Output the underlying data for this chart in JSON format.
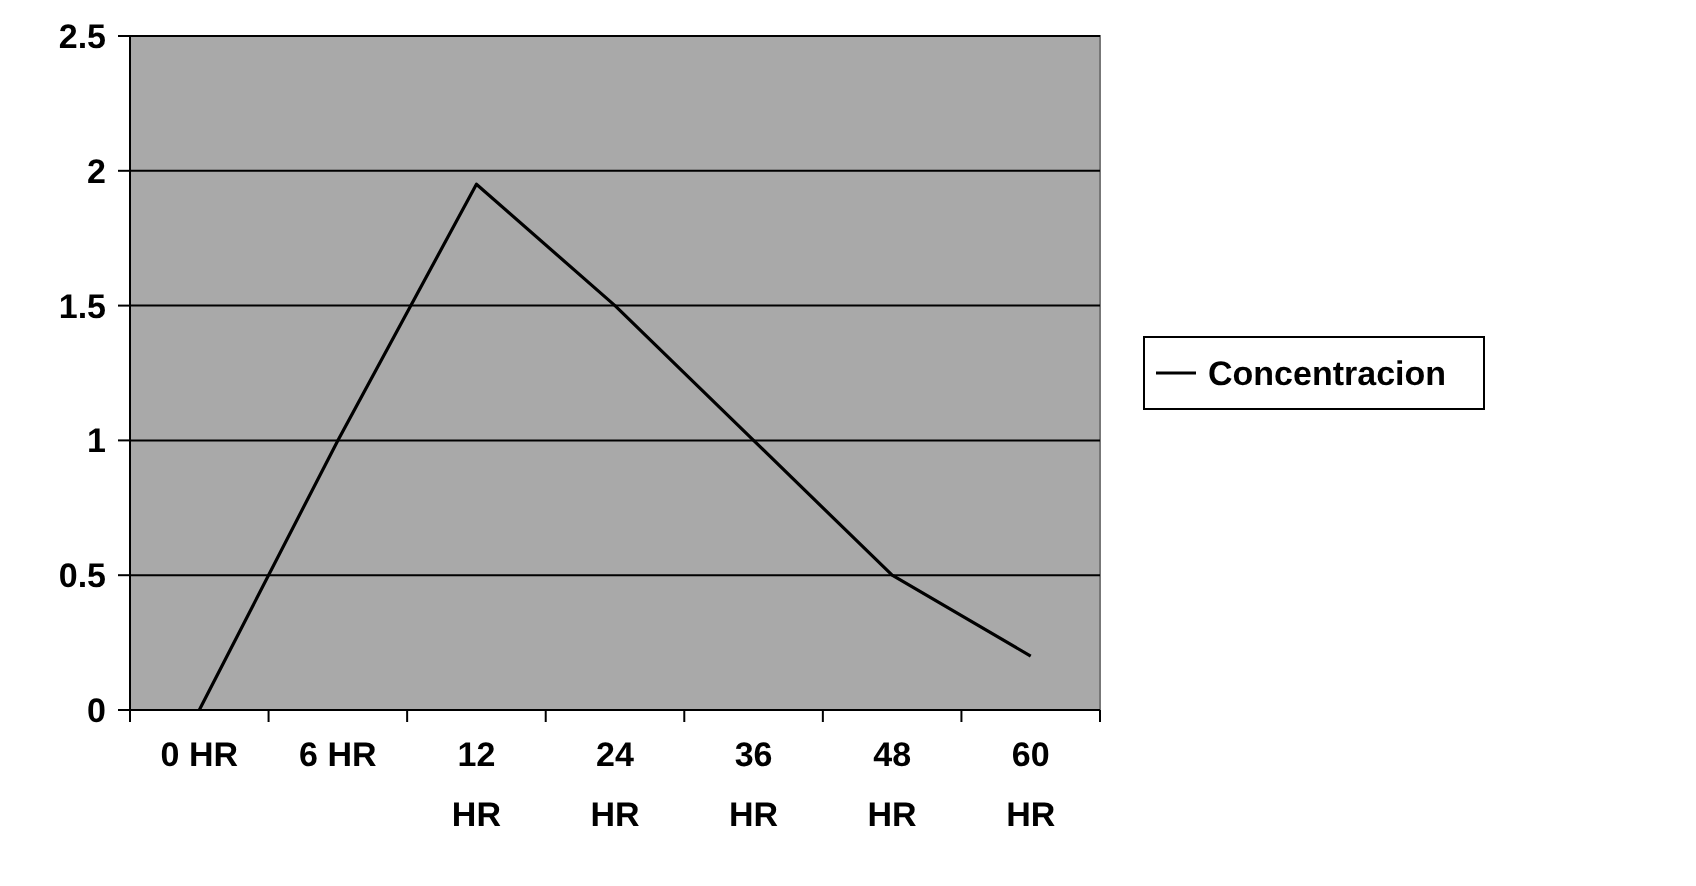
{
  "chart_data": {
    "type": "line",
    "categories": [
      "0 HR",
      "6 HR",
      "12 HR",
      "24 HR",
      "36 HR",
      "48 HR",
      "60 HR"
    ],
    "series": [
      {
        "name": "Concentracion",
        "color": "#000000",
        "values": [
          0,
          1.0,
          1.95,
          1.5,
          1.0,
          0.5,
          0.2
        ]
      }
    ],
    "ylim": [
      0,
      2.5
    ],
    "yticks": [
      0,
      0.5,
      1,
      1.5,
      2,
      2.5
    ],
    "grid": "y",
    "legend": "right",
    "marker": "none",
    "line_style": "solid"
  }
}
